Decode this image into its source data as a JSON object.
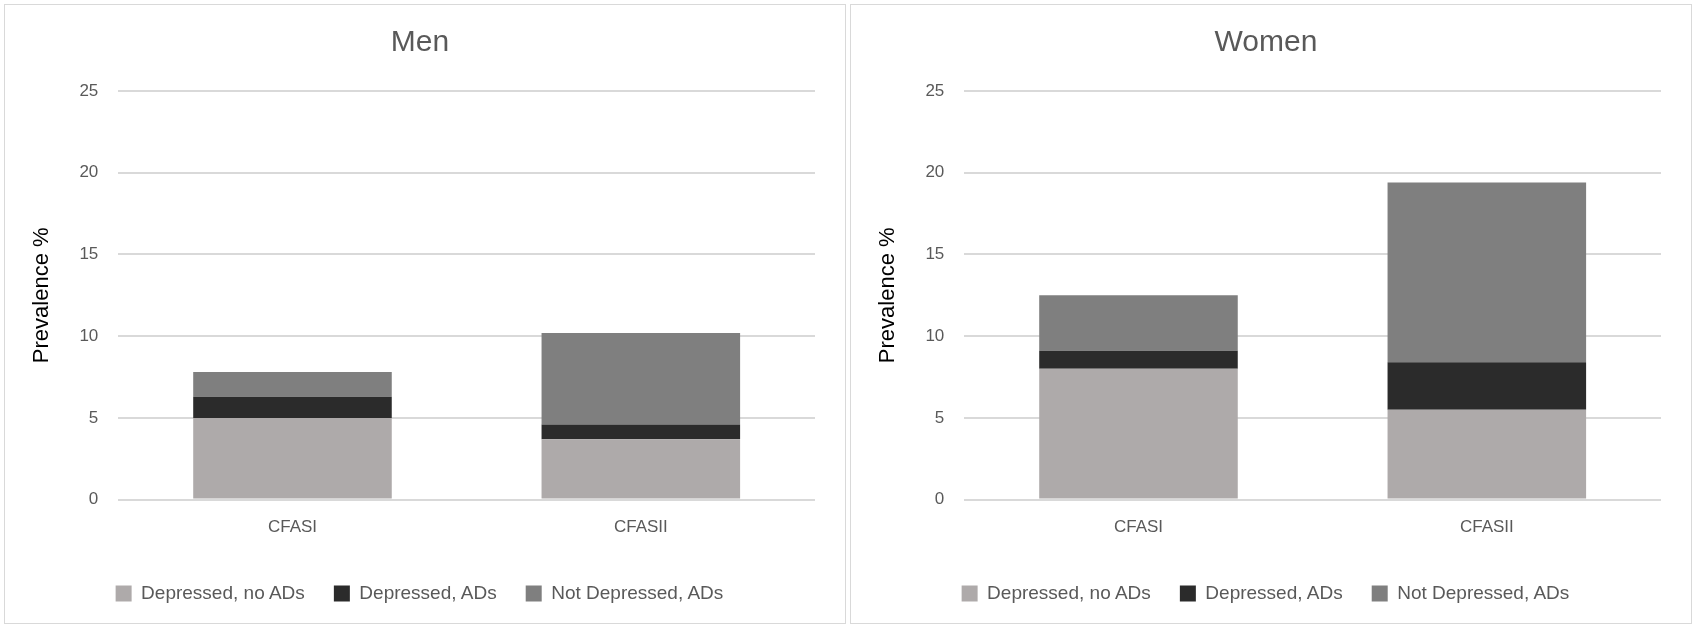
{
  "chart_data": [
    {
      "type": "bar",
      "title": "Men",
      "ylabel": "Prevalence %",
      "categories": [
        "CFASI",
        "CFASII"
      ],
      "stacked": true,
      "series": [
        {
          "name": "Depressed, no ADs",
          "color": "#aeaaaa",
          "values": [
            5.0,
            3.7
          ]
        },
        {
          "name": "Depressed, ADs",
          "color": "#2b2b2b",
          "values": [
            1.3,
            0.9
          ]
        },
        {
          "name": "Not Depressed, ADs",
          "color": "#7f7f7f",
          "values": [
            1.5,
            5.6
          ]
        }
      ],
      "ylim": [
        0,
        25
      ],
      "yticks": [
        0,
        5,
        10,
        15,
        20,
        25
      ],
      "grid": "y",
      "legend": "bottom"
    },
    {
      "type": "bar",
      "title": "Women",
      "ylabel": "Prevalence %",
      "categories": [
        "CFASI",
        "CFASII"
      ],
      "stacked": true,
      "series": [
        {
          "name": "Depressed, no ADs",
          "color": "#aeaaaa",
          "values": [
            8.0,
            5.5
          ]
        },
        {
          "name": "Depressed, ADs",
          "color": "#2b2b2b",
          "values": [
            1.1,
            2.9
          ]
        },
        {
          "name": "Not Depressed, ADs",
          "color": "#7f7f7f",
          "values": [
            3.4,
            11.0
          ]
        }
      ],
      "ylim": [
        0,
        25
      ],
      "yticks": [
        0,
        5,
        10,
        15,
        20,
        25
      ],
      "grid": "y",
      "legend": "bottom"
    }
  ]
}
